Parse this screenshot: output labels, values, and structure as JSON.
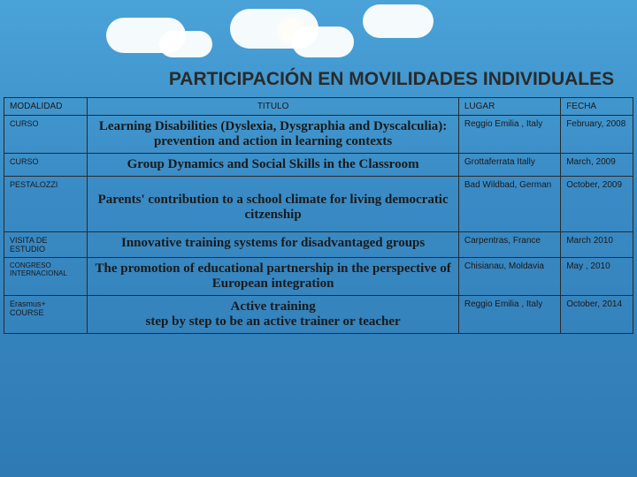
{
  "title": "PARTICIPACIÓN EN MOVILIDADES INDIVIDUALES",
  "headers": {
    "modalidad": "MODALIDAD",
    "titulo": "TITULO",
    "lugar": "LUGAR",
    "fecha": "FECHA"
  },
  "rows": [
    {
      "modalidad": "CURSO",
      "titulo": "Learning Disabilities (Dyslexia, Dysgraphia and Dyscalculia): prevention and action in learning contexts",
      "lugar": "Reggio Emilia , Italy",
      "fecha": "February, 2008"
    },
    {
      "modalidad": "CURSO",
      "titulo": "Group Dynamics and Social Skills in the Classroom",
      "lugar": "Grottaferrata Itally",
      "fecha": "March, 2009"
    },
    {
      "modalidad": "PESTALOZZI",
      "titulo": "Parents' contribution to a school climate for living democratic citzenship",
      "lugar": "Bad Wildbad, German",
      "fecha": "October, 2009"
    },
    {
      "modalidad": "VISITA DE ESTUDIO",
      "titulo": "Innovative training systems for disadvantaged groups",
      "lugar": "Carpentras, France",
      "fecha": "March 2010"
    },
    {
      "modalidad": "CONGRESO INTERNACIONAL",
      "titulo": "The promotion of educational partnership in the perspective of European integration",
      "lugar": "Chisianau, Moldavia",
      "fecha": "May , 2010"
    },
    {
      "modalidad": "Erasmus+ COURSE",
      "titulo": "Active training\nstep by step to be an active trainer or teacher",
      "lugar": "Reggio Emilia , Italy",
      "fecha": "October, 2014"
    }
  ],
  "style": {
    "bg_gradient_top": "#4aa3d8",
    "bg_gradient_bottom": "#2f7ab4",
    "border_color": "#2a2a2a",
    "title_color": "#2a2a2a",
    "cell_text_color": "#1a1a1a",
    "title_fontsize": 21,
    "header_fontsize": 10,
    "mod_fontsize": 9,
    "titulo_cell_fontsize": 15,
    "side_fontsize": 10
  }
}
